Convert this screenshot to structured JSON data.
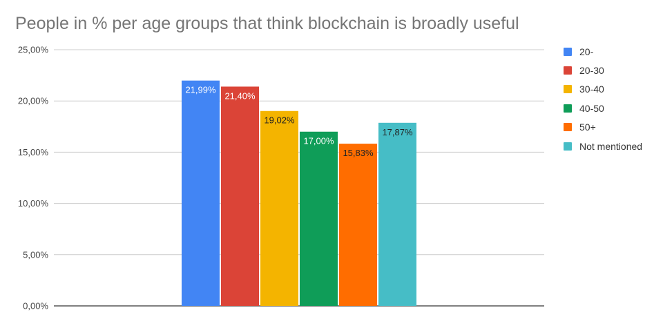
{
  "chart_data": {
    "type": "bar",
    "title": "People in % per age groups that think blockchain is broadly useful",
    "xlabel": "",
    "ylabel": "",
    "ylim": [
      0,
      25
    ],
    "yticks": [
      "0,00%",
      "5,00%",
      "10,00%",
      "15,00%",
      "20,00%",
      "25,00%"
    ],
    "yticks_values": [
      0,
      5,
      10,
      15,
      20,
      25
    ],
    "grid": true,
    "legend_position": "right",
    "categories": [
      ""
    ],
    "series": [
      {
        "name": "20-",
        "values": [
          21.99
        ],
        "label": "21,99%",
        "color": "#4285F4",
        "label_color": "#ffffff"
      },
      {
        "name": "20-30",
        "values": [
          21.4
        ],
        "label": "21,40%",
        "color": "#DB4437",
        "label_color": "#ffffff"
      },
      {
        "name": "30-40",
        "values": [
          19.02
        ],
        "label": "19,02%",
        "color": "#F4B400",
        "label_color": "#222222"
      },
      {
        "name": "40-50",
        "values": [
          17.0
        ],
        "label": "17,00%",
        "color": "#0F9D58",
        "label_color": "#ffffff"
      },
      {
        "name": "50+",
        "values": [
          15.83
        ],
        "label": "15,83%",
        "color": "#FF6D00",
        "label_color": "#222222"
      },
      {
        "name": "Not mentioned",
        "values": [
          17.87
        ],
        "label": "17,87%",
        "color": "#46BDC6",
        "label_color": "#222222"
      }
    ]
  }
}
